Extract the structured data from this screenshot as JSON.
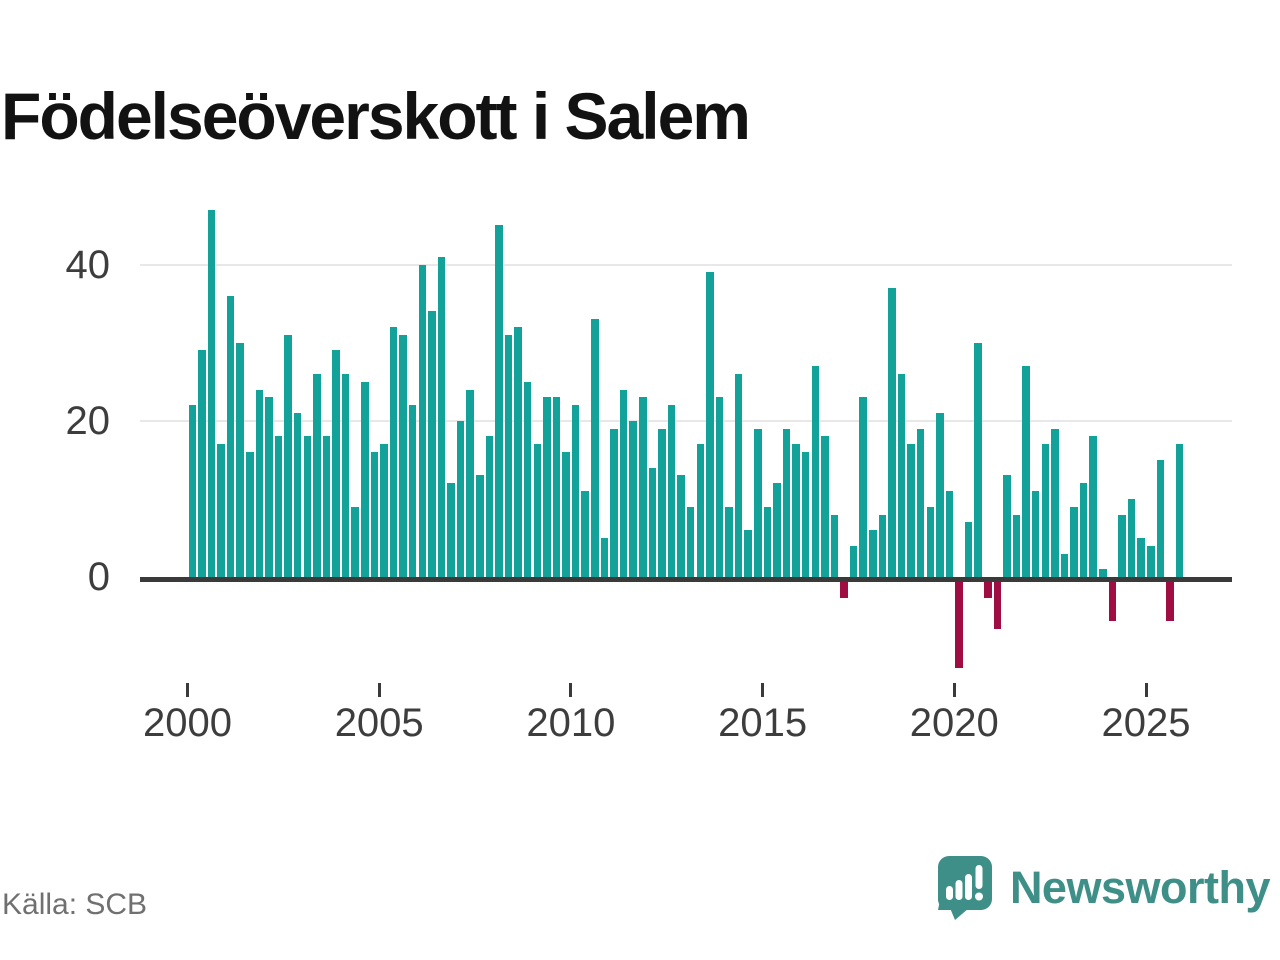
{
  "chart_data": {
    "type": "bar",
    "title": "Födelseöverskott i Salem",
    "source": "Källa: SCB",
    "series_name": "Födelseöverskott",
    "period": "quarterly",
    "start_year": 2000,
    "start_quarter": 1,
    "values": [
      22,
      29,
      47,
      17,
      36,
      30,
      16,
      24,
      23,
      18,
      31,
      21,
      18,
      26,
      18,
      29,
      26,
      9,
      25,
      16,
      17,
      32,
      31,
      22,
      40,
      34,
      41,
      12,
      20,
      24,
      13,
      18,
      45,
      31,
      32,
      25,
      17,
      23,
      23,
      16,
      22,
      11,
      33,
      5,
      19,
      24,
      20,
      23,
      14,
      19,
      22,
      13,
      9,
      17,
      39,
      23,
      9,
      26,
      6,
      19,
      9,
      12,
      19,
      17,
      16,
      27,
      18,
      8,
      -2,
      4,
      23,
      6,
      8,
      37,
      26,
      17,
      19,
      9,
      21,
      11,
      -11,
      7,
      30,
      -2,
      -6,
      13,
      8,
      27,
      11,
      17,
      19,
      3,
      9,
      12,
      18,
      1,
      -5,
      8,
      10,
      5,
      4,
      15,
      -5,
      17
    ],
    "y_ticks": [
      0,
      20,
      40
    ],
    "x_tick_years": [
      2000,
      2005,
      2010,
      2015,
      2020,
      2025
    ],
    "ylim": [
      -12,
      48
    ],
    "grid": "horizontal",
    "legend": "none",
    "positive_color": "#13a29a",
    "negative_color": "#a00d42",
    "axis_color": "#3a3a3a",
    "label_color": "#3d3d3d",
    "grid_color": "#e8e8e8"
  },
  "branding": {
    "logo_text": "Newsworthy",
    "logo_color": "#3e8f88",
    "logo_icon": "speech-bubble-bar-chart-icon"
  }
}
